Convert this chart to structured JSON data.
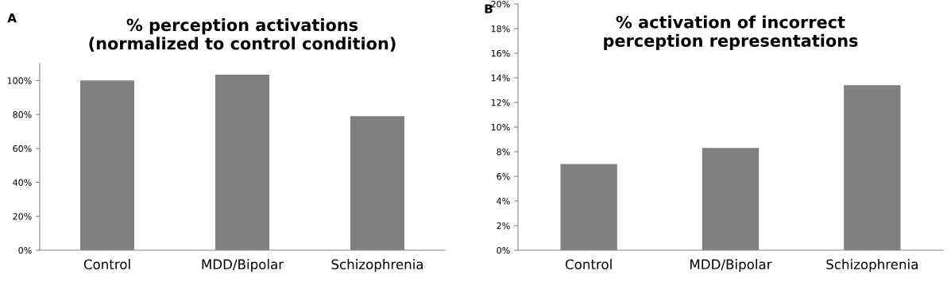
{
  "chart_data": [
    {
      "type": "bar",
      "title": "% perception activations\n(normalized to control condition)",
      "annotations": [
        "A"
      ],
      "categories": [
        "Control",
        "MDD/Bipolar",
        "Schizophrenia"
      ],
      "values": [
        100,
        103.5,
        79
      ],
      "color": "#808080",
      "ylim": [
        0,
        110
      ],
      "yticks": [
        {
          "value": 0,
          "label": "0%"
        },
        {
          "value": 20,
          "label": "20%"
        },
        {
          "value": 40,
          "label": "40%"
        },
        {
          "value": 60,
          "label": "60%"
        },
        {
          "value": 80,
          "label": "80%"
        },
        {
          "value": 100,
          "label": "100%"
        }
      ],
      "grid": false,
      "legend": false
    },
    {
      "type": "bar",
      "title": "% activation of incorrect\nperception representations",
      "annotations": [
        "B"
      ],
      "categories": [
        "Control",
        "MDD/Bipolar",
        "Schizophrenia"
      ],
      "values": [
        7.0,
        8.3,
        13.4
      ],
      "color": "#808080",
      "ylim": [
        0,
        20
      ],
      "yticks": [
        {
          "value": 0,
          "label": "0%"
        },
        {
          "value": 2,
          "label": "2%"
        },
        {
          "value": 4,
          "label": "4%"
        },
        {
          "value": 6,
          "label": "6%"
        },
        {
          "value": 8,
          "label": "8%"
        },
        {
          "value": 10,
          "label": "10%"
        },
        {
          "value": 12,
          "label": "12%"
        },
        {
          "value": 14,
          "label": "14%"
        },
        {
          "value": 16,
          "label": "16%"
        },
        {
          "value": 18,
          "label": "18%"
        },
        {
          "value": 20,
          "label": "20%"
        }
      ],
      "grid": false,
      "legend": false
    }
  ]
}
